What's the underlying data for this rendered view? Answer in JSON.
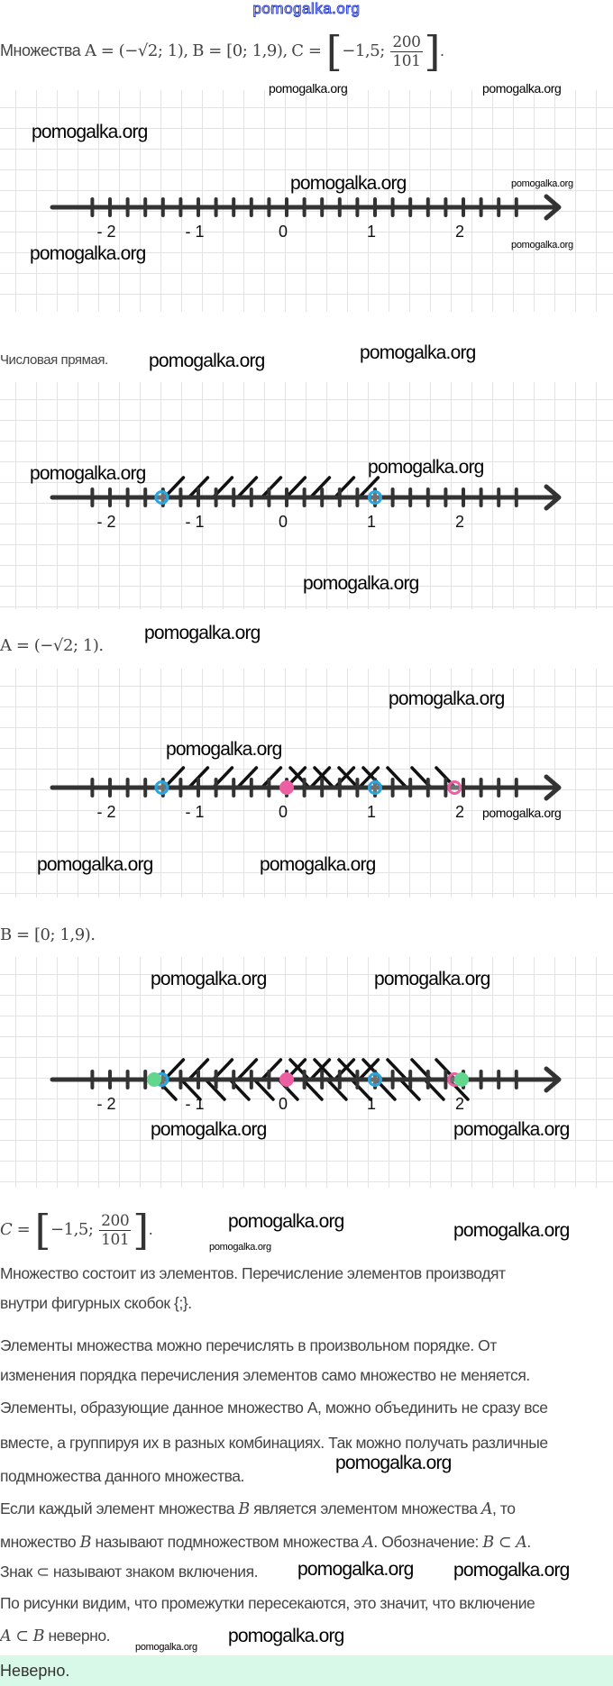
{
  "watermark": "pomogalka.org",
  "problem": {
    "lead": "Множества",
    "A_def": "A = (−√2; 1),",
    "B_def": "B = [0; 1,9),",
    "C_def": "C = ",
    "C_inner": "−1,5;",
    "frac_num": "200",
    "frac_den": "101",
    "end": "."
  },
  "captions": {
    "number_line": "Числовая прямая.",
    "A": "A = (−√2; 1).",
    "B": "B = [0; 1,9).",
    "C_prefix": "C = ",
    "C_inner": "−1,5;",
    "C_num": "200",
    "C_den": "101",
    "C_end": "."
  },
  "number_lines": {
    "tick_step": 0.2,
    "tick_range": [
      -2.2,
      2.6
    ],
    "labels": [
      {
        "value": -2,
        "text": "- 2"
      },
      {
        "value": -1,
        "text": "- 1"
      },
      {
        "value": 0,
        "text": "0"
      },
      {
        "value": 1,
        "text": "1"
      },
      {
        "value": 2,
        "text": "2"
      }
    ],
    "colors": {
      "A": "#2aa6df",
      "B": "#ec5fa3",
      "C": "#63d68d",
      "axis": "#333333"
    },
    "sets": {
      "A": {
        "from": -1.414,
        "to": 1,
        "left_closed": false,
        "right_closed": false
      },
      "B": {
        "from": 0,
        "to": 1.9,
        "left_closed": true,
        "right_closed": false
      },
      "C": {
        "from": -1.5,
        "to": 1.98,
        "left_closed": true,
        "right_closed": true
      }
    },
    "figures": [
      [],
      [
        "A"
      ],
      [
        "A",
        "B"
      ],
      [
        "A",
        "B",
        "C"
      ]
    ]
  },
  "paragraphs": [
    [
      "Множество состоит из элементов. Перечисление элементов производят",
      "внутри фигурных скобок {;}."
    ],
    [
      "Элементы множества можно перечислять в произвольном порядке. От",
      "изменения порядка перечисления элементов само множество не меняется."
    ],
    [
      "Элементы, образующие данное множество А, можно объединить не сразу все",
      "вместе, а группируя их в разных комбинациях. Так можно получать различные",
      "подмножества данного множества."
    ]
  ],
  "definition": {
    "l1a": "Если каждый элемент множества ",
    "l1b": "B",
    "l1c": " является элементом множества ",
    "l1d": "A",
    "l1e": ", то",
    "l2a": "множество ",
    "l2b": "B",
    "l2c": " называют подмножеством множества ",
    "l2d": "A",
    "l2e": ". Обозначение: ",
    "l2f": "B ⊂ A",
    "l2g": ".",
    "l3": "Знак ⊂ называют знаком включения."
  },
  "conclusion": {
    "l1": "По рисунки видим, что промежутки пересекаются, это значит, что включение",
    "l2a": "A ⊂ B",
    "l2b": " неверно."
  },
  "answer": "Неверно."
}
